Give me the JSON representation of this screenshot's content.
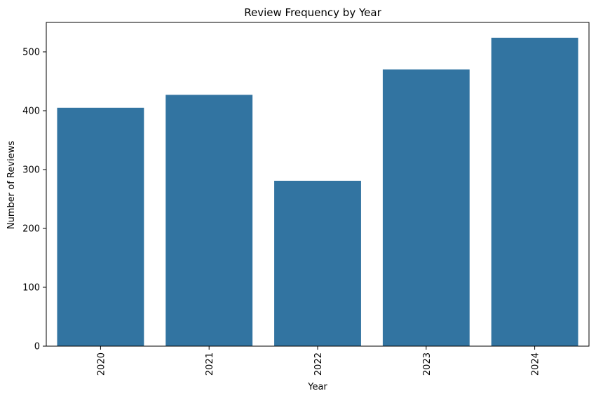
{
  "chart_data": {
    "type": "bar",
    "title": "Review Frequency by Year",
    "xlabel": "Year",
    "ylabel": "Number of Reviews",
    "categories": [
      "2020",
      "2021",
      "2022",
      "2023",
      "2024"
    ],
    "values": [
      405,
      427,
      281,
      470,
      524
    ],
    "ylim": [
      0,
      550
    ],
    "yticks": [
      0,
      100,
      200,
      300,
      400,
      500
    ],
    "bar_color": "#3274a1",
    "grid": false,
    "legend": "none",
    "x_tick_rotation": "vertical"
  }
}
